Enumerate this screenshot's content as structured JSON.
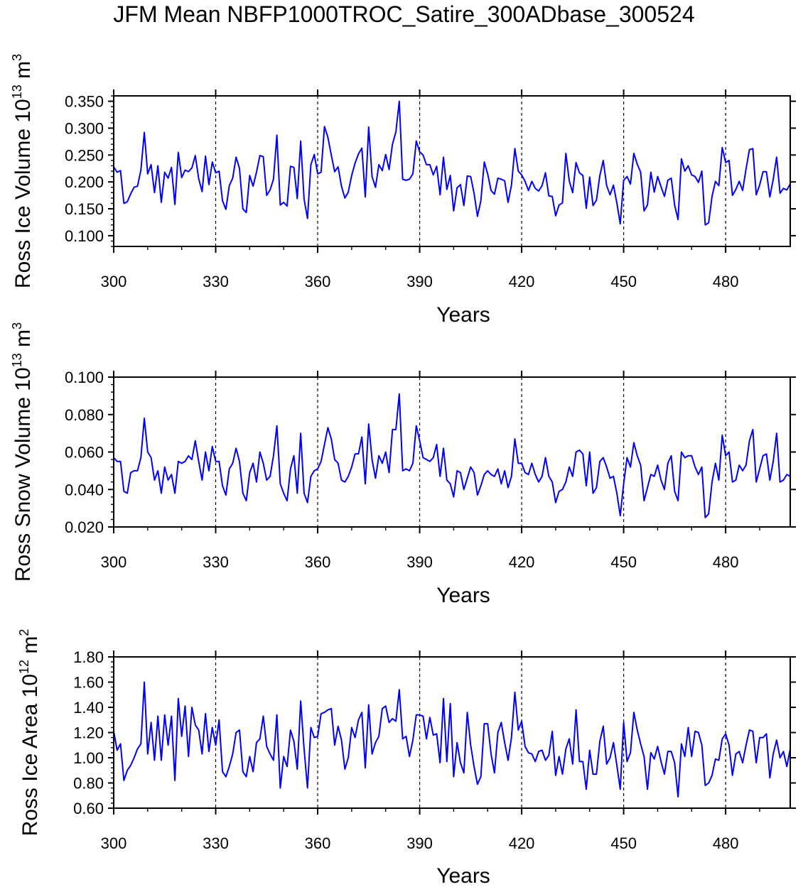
{
  "title": "JFM Mean NBFP1000TROC_Satire_300ADbase_300524",
  "colors": {
    "series": "#0000ff",
    "axis": "#000000"
  },
  "chart_data": [
    {
      "type": "line",
      "panel": "top",
      "ylabel": "Ross Ice Volume",
      "ylabel_exp": "10",
      "ylabel_exp_power": "13",
      "ylabel_unit": "m",
      "ylabel_unit_power": "3",
      "xlabel": "Years",
      "xlim": [
        300,
        499
      ],
      "ylim": [
        0.08,
        0.36
      ],
      "yticks": [
        0.1,
        0.15,
        0.2,
        0.25,
        0.3,
        0.35
      ],
      "ytick_labels": [
        "0.100",
        "0.150",
        "0.200",
        "0.250",
        "0.300",
        "0.350"
      ],
      "xticks": [
        300,
        330,
        360,
        390,
        420,
        450,
        480
      ],
      "xtick_labels": [
        "300",
        "330",
        "360",
        "390",
        "420",
        "450",
        "480"
      ],
      "ref_lines_x": [
        330,
        360,
        390,
        420,
        450,
        480
      ],
      "series": [
        {
          "name": "Ross Ice Volume",
          "x_start": 300,
          "values": [
            0.228,
            0.218,
            0.221,
            0.16,
            0.163,
            0.178,
            0.19,
            0.192,
            0.222,
            0.292,
            0.215,
            0.232,
            0.18,
            0.23,
            0.162,
            0.218,
            0.207,
            0.227,
            0.158,
            0.255,
            0.208,
            0.222,
            0.219,
            0.226,
            0.249,
            0.206,
            0.182,
            0.248,
            0.195,
            0.237,
            0.217,
            0.22,
            0.165,
            0.149,
            0.193,
            0.207,
            0.246,
            0.225,
            0.15,
            0.143,
            0.212,
            0.192,
            0.218,
            0.249,
            0.247,
            0.175,
            0.185,
            0.205,
            0.287,
            0.157,
            0.162,
            0.155,
            0.229,
            0.227,
            0.169,
            0.276,
            0.168,
            0.132,
            0.232,
            0.251,
            0.215,
            0.218,
            0.303,
            0.283,
            0.25,
            0.219,
            0.228,
            0.192,
            0.17,
            0.181,
            0.212,
            0.235,
            0.252,
            0.263,
            0.172,
            0.302,
            0.21,
            0.19,
            0.232,
            0.221,
            0.251,
            0.223,
            0.27,
            0.293,
            0.35,
            0.205,
            0.203,
            0.205,
            0.215,
            0.276,
            0.256,
            0.25,
            0.232,
            0.232,
            0.213,
            0.229,
            0.176,
            0.246,
            0.186,
            0.212,
            0.146,
            0.189,
            0.195,
            0.156,
            0.211,
            0.21,
            0.179,
            0.136,
            0.165,
            0.237,
            0.215,
            0.184,
            0.177,
            0.207,
            0.205,
            0.202,
            0.162,
            0.194,
            0.262,
            0.22,
            0.213,
            0.201,
            0.184,
            0.201,
            0.188,
            0.183,
            0.193,
            0.217,
            0.174,
            0.173,
            0.137,
            0.157,
            0.161,
            0.253,
            0.202,
            0.18,
            0.236,
            0.217,
            0.212,
            0.151,
            0.209,
            0.156,
            0.166,
            0.212,
            0.24,
            0.193,
            0.176,
            0.194,
            0.161,
            0.122,
            0.203,
            0.21,
            0.196,
            0.253,
            0.233,
            0.218,
            0.146,
            0.157,
            0.218,
            0.181,
            0.21,
            0.191,
            0.173,
            0.203,
            0.207,
            0.157,
            0.13,
            0.243,
            0.22,
            0.23,
            0.213,
            0.21,
            0.199,
            0.22,
            0.12,
            0.124,
            0.173,
            0.201,
            0.193,
            0.264,
            0.236,
            0.24,
            0.175,
            0.186,
            0.201,
            0.184,
            0.224,
            0.26,
            0.262,
            0.176,
            0.194,
            0.219,
            0.219,
            0.172,
            0.205,
            0.246,
            0.179,
            0.188,
            0.185,
            0.196
          ]
        }
      ]
    },
    {
      "type": "line",
      "panel": "middle",
      "ylabel": "Ross Snow Volume",
      "ylabel_exp": "10",
      "ylabel_exp_power": "13",
      "ylabel_unit": "m",
      "ylabel_unit_power": "3",
      "xlabel": "Years",
      "xlim": [
        300,
        499
      ],
      "ylim": [
        0.02,
        0.1
      ],
      "yticks": [
        0.02,
        0.04,
        0.06,
        0.08,
        0.1
      ],
      "ytick_labels": [
        "0.020",
        "0.040",
        "0.060",
        "0.080",
        "0.100"
      ],
      "xticks": [
        300,
        330,
        360,
        390,
        420,
        450,
        480
      ],
      "xtick_labels": [
        "300",
        "330",
        "360",
        "390",
        "420",
        "450",
        "480"
      ],
      "ref_lines_x": [
        330,
        360,
        390,
        420,
        450,
        480
      ],
      "series": [
        {
          "name": "Ross Snow Volume",
          "x_start": 300,
          "values": [
            0.057,
            0.055,
            0.055,
            0.039,
            0.038,
            0.049,
            0.05,
            0.05,
            0.057,
            0.078,
            0.06,
            0.057,
            0.045,
            0.05,
            0.038,
            0.052,
            0.045,
            0.048,
            0.038,
            0.055,
            0.054,
            0.055,
            0.058,
            0.056,
            0.066,
            0.055,
            0.045,
            0.06,
            0.05,
            0.063,
            0.055,
            0.055,
            0.042,
            0.037,
            0.051,
            0.054,
            0.062,
            0.055,
            0.038,
            0.034,
            0.049,
            0.054,
            0.044,
            0.06,
            0.054,
            0.045,
            0.047,
            0.058,
            0.074,
            0.043,
            0.038,
            0.034,
            0.051,
            0.058,
            0.038,
            0.07,
            0.038,
            0.033,
            0.047,
            0.05,
            0.051,
            0.055,
            0.064,
            0.073,
            0.067,
            0.056,
            0.054,
            0.045,
            0.044,
            0.047,
            0.052,
            0.059,
            0.059,
            0.068,
            0.043,
            0.075,
            0.056,
            0.046,
            0.058,
            0.054,
            0.06,
            0.049,
            0.072,
            0.072,
            0.091,
            0.05,
            0.051,
            0.05,
            0.054,
            0.074,
            0.066,
            0.057,
            0.056,
            0.055,
            0.057,
            0.064,
            0.047,
            0.062,
            0.045,
            0.043,
            0.036,
            0.05,
            0.049,
            0.04,
            0.046,
            0.052,
            0.049,
            0.037,
            0.042,
            0.048,
            0.05,
            0.048,
            0.047,
            0.051,
            0.043,
            0.05,
            0.041,
            0.047,
            0.067,
            0.054,
            0.054,
            0.049,
            0.048,
            0.054,
            0.048,
            0.044,
            0.047,
            0.057,
            0.047,
            0.044,
            0.033,
            0.039,
            0.04,
            0.044,
            0.052,
            0.047,
            0.06,
            0.061,
            0.059,
            0.042,
            0.06,
            0.038,
            0.041,
            0.055,
            0.057,
            0.052,
            0.046,
            0.047,
            0.038,
            0.026,
            0.043,
            0.057,
            0.052,
            0.065,
            0.058,
            0.053,
            0.034,
            0.041,
            0.048,
            0.047,
            0.053,
            0.045,
            0.04,
            0.054,
            0.058,
            0.039,
            0.034,
            0.06,
            0.057,
            0.058,
            0.058,
            0.052,
            0.048,
            0.052,
            0.025,
            0.027,
            0.044,
            0.054,
            0.045,
            0.069,
            0.058,
            0.06,
            0.044,
            0.045,
            0.053,
            0.05,
            0.053,
            0.066,
            0.072,
            0.044,
            0.051,
            0.058,
            0.059,
            0.045,
            0.055,
            0.07,
            0.044,
            0.045,
            0.048,
            0.047
          ]
        }
      ]
    },
    {
      "type": "line",
      "panel": "bottom",
      "ylabel": "Ross Ice Area",
      "ylabel_exp": "10",
      "ylabel_exp_power": "12",
      "ylabel_unit": "m",
      "ylabel_unit_power": "2",
      "xlabel": "Years",
      "xlim": [
        300,
        499
      ],
      "ylim": [
        0.6,
        1.8
      ],
      "yticks": [
        0.6,
        0.8,
        1.0,
        1.2,
        1.4,
        1.6,
        1.8
      ],
      "ytick_labels": [
        "0.60",
        "0.80",
        "1.00",
        "1.20",
        "1.40",
        "1.60",
        "1.80"
      ],
      "xticks": [
        300,
        330,
        360,
        390,
        420,
        450,
        480
      ],
      "xtick_labels": [
        "300",
        "330",
        "360",
        "390",
        "420",
        "450",
        "480"
      ],
      "ref_lines_x": [
        330,
        360,
        390,
        420,
        450,
        480
      ],
      "series": [
        {
          "name": "Ross Ice Area",
          "x_start": 300,
          "values": [
            1.21,
            1.06,
            1.11,
            0.82,
            0.9,
            0.94,
            1.0,
            1.07,
            1.11,
            1.6,
            1.03,
            1.28,
            0.98,
            1.33,
            0.98,
            1.34,
            1.1,
            1.33,
            0.82,
            1.47,
            1.17,
            1.41,
            1.01,
            1.4,
            1.26,
            1.22,
            1.03,
            1.35,
            1.05,
            1.24,
            1.1,
            1.3,
            0.89,
            0.85,
            0.93,
            1.03,
            1.2,
            1.22,
            0.89,
            0.85,
            1.01,
            0.89,
            1.12,
            1.15,
            1.33,
            1.09,
            1.03,
            0.98,
            1.34,
            0.76,
            1.01,
            0.93,
            1.22,
            1.13,
            0.91,
            1.45,
            1.07,
            0.76,
            1.24,
            1.16,
            1.17,
            1.35,
            1.36,
            1.38,
            1.39,
            1.1,
            1.25,
            1.14,
            0.91,
            1.0,
            1.24,
            1.16,
            1.3,
            1.36,
            0.92,
            1.42,
            1.03,
            1.12,
            1.17,
            1.39,
            1.41,
            1.28,
            1.31,
            1.29,
            1.54,
            1.15,
            1.17,
            1.01,
            1.14,
            1.34,
            1.34,
            1.33,
            1.15,
            1.32,
            1.18,
            1.19,
            0.96,
            1.47,
            0.97,
            1.43,
            0.85,
            1.12,
            0.96,
            0.88,
            1.36,
            1.1,
            0.93,
            0.79,
            0.85,
            1.27,
            1.27,
            1.03,
            0.88,
            1.2,
            1.28,
            1.12,
            0.98,
            1.16,
            1.52,
            1.22,
            1.29,
            1.09,
            1.04,
            1.03,
            0.97,
            1.05,
            1.06,
            0.98,
            1.02,
            1.21,
            0.86,
            1.01,
            0.87,
            1.07,
            1.15,
            0.95,
            1.38,
            0.97,
            0.97,
            0.75,
            1.06,
            0.87,
            0.87,
            1.13,
            1.25,
            0.95,
            1.0,
            1.12,
            0.94,
            0.75,
            1.28,
            0.97,
            1.04,
            1.36,
            1.22,
            1.11,
            1.01,
            0.75,
            1.04,
            0.99,
            1.09,
            0.97,
            0.87,
            1.05,
            1.05,
            0.96,
            0.69,
            1.11,
            1.01,
            1.24,
            1.01,
            1.21,
            1.2,
            1.1,
            0.78,
            0.8,
            0.86,
            0.99,
            0.98,
            1.15,
            1.19,
            1.1,
            0.86,
            1.03,
            1.05,
            0.96,
            1.1,
            1.22,
            1.21,
            0.96,
            1.16,
            1.16,
            1.19,
            0.84,
            1.03,
            1.14,
            1.0,
            1.05,
            0.93,
            1.07
          ]
        }
      ]
    }
  ]
}
